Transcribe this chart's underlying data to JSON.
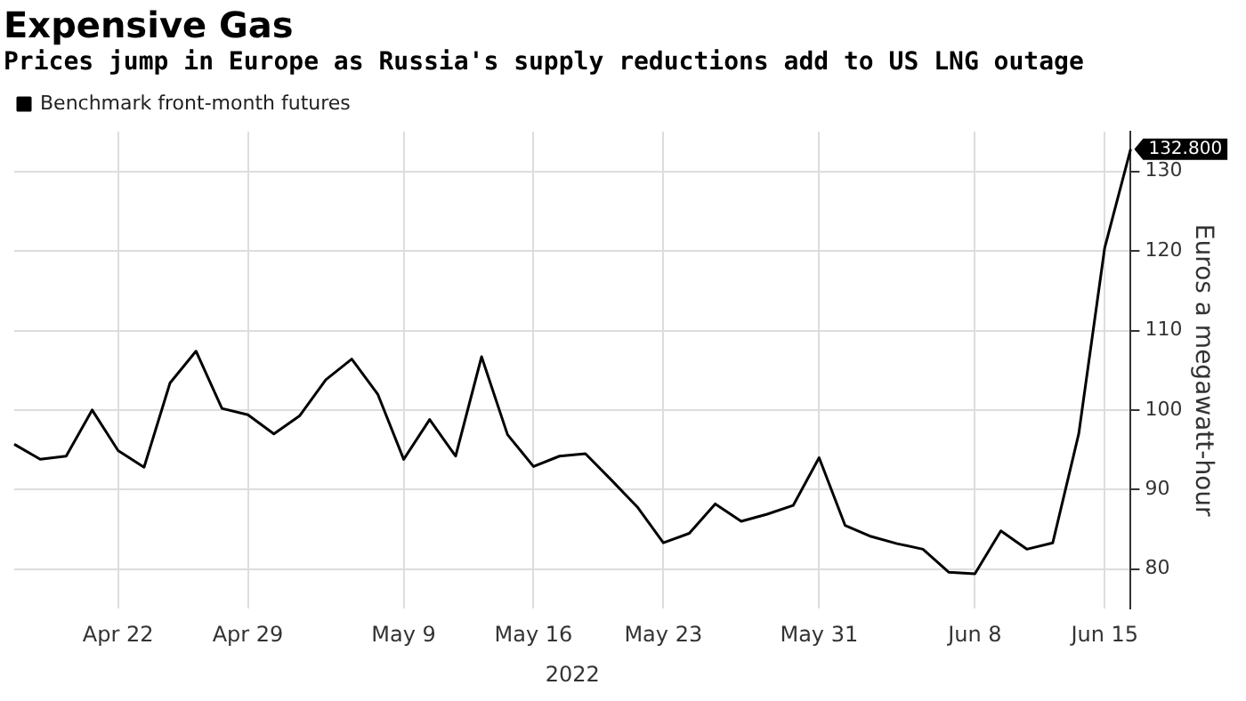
{
  "chart_data": {
    "type": "line",
    "title": "Expensive Gas",
    "subtitle": "Prices jump in Europe as Russia's supply reductions add to US LNG outage",
    "ylabel": "Euros a megawatt-hour",
    "xlabel": "2022",
    "categories": [
      null,
      null,
      null,
      null,
      "Apr 22",
      null,
      null,
      null,
      null,
      "Apr 29",
      null,
      null,
      null,
      null,
      null,
      "May 9",
      null,
      null,
      null,
      null,
      "May 16",
      null,
      null,
      null,
      null,
      "May 23",
      null,
      null,
      null,
      null,
      null,
      "May 31",
      null,
      null,
      null,
      null,
      null,
      "Jun 8",
      null,
      null,
      null,
      null,
      "Jun 15",
      null
    ],
    "series": [
      {
        "name": "Benchmark front-month futures",
        "color": "#000000",
        "values": [
          95.7,
          93.8,
          94.2,
          100.0,
          94.9,
          92.8,
          103.4,
          107.4,
          100.2,
          99.4,
          97.0,
          99.3,
          103.8,
          106.4,
          102.0,
          93.8,
          98.8,
          94.2,
          106.7,
          96.9,
          92.9,
          94.2,
          94.5,
          91.2,
          87.8,
          83.3,
          84.5,
          88.2,
          86.0,
          86.9,
          88.0,
          94.0,
          85.5,
          84.1,
          83.2,
          82.5,
          79.6,
          79.4,
          84.8,
          82.5,
          83.3,
          97.0,
          120.4,
          132.8
        ],
        "value_labels": [
          null,
          null,
          null,
          null,
          null,
          null,
          null,
          null,
          null,
          null,
          null,
          null,
          null,
          null,
          null,
          null,
          null,
          null,
          null,
          null,
          null,
          null,
          null,
          null,
          null,
          null,
          null,
          null,
          null,
          null,
          null,
          null,
          null,
          null,
          null,
          null,
          null,
          null,
          null,
          null,
          null,
          null,
          null,
          "132.800"
        ]
      }
    ],
    "ylim": [
      75,
      135
    ],
    "yticks": [
      80,
      90,
      100,
      110,
      120,
      130
    ],
    "grid": true,
    "legend": "top left",
    "marker": "none",
    "line_style": "solid"
  }
}
